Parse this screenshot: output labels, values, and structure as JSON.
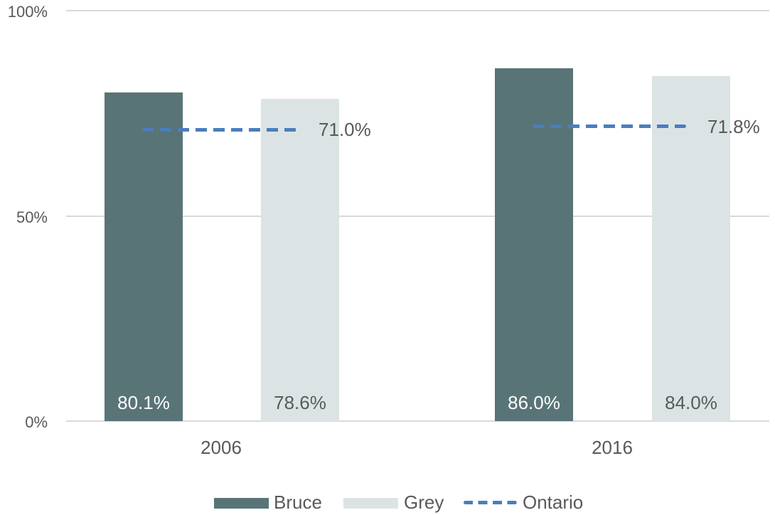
{
  "chart_data": {
    "type": "bar",
    "title": "",
    "xlabel": "",
    "ylabel": "",
    "categories": [
      "2006",
      "2016"
    ],
    "series": [
      {
        "name": "Bruce",
        "type": "bar",
        "color": "#597476",
        "values": [
          80.1,
          86.0
        ],
        "labels": [
          "80.1%",
          "86.0%"
        ]
      },
      {
        "name": "Grey",
        "type": "bar",
        "color": "#dce3e5",
        "values": [
          78.6,
          84.0
        ],
        "labels": [
          "78.6%",
          "84.0%"
        ]
      },
      {
        "name": "Ontario",
        "type": "dashed_line",
        "color": "#4a7ebc",
        "values": [
          71.0,
          71.8
        ],
        "labels": [
          "71.0%",
          "71.8%"
        ]
      }
    ],
    "ylim": [
      0,
      100
    ],
    "yticks": [
      {
        "label": "0%",
        "value": 0
      },
      {
        "label": "50%",
        "value": 50
      },
      {
        "label": "100%",
        "value": 100
      }
    ],
    "grid": "horizontal",
    "legend_position": "bottom",
    "colors": {
      "bar_bruce": "#597476",
      "bar_grey": "#dce3e5",
      "line_ontario": "#4a7ebc",
      "gridline": "#d9d9d9",
      "text": "#595959",
      "bar_label_on_dark": "#ffffff",
      "background": "#ffffff"
    }
  }
}
